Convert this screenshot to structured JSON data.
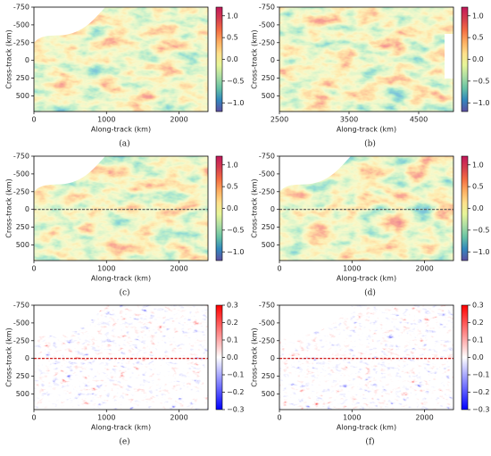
{
  "charts": [
    {
      "type": "heatmap",
      "caption": "(a)",
      "xlabel": "Along-track (km)",
      "ylabel": "Cross-track (km)",
      "xlim": [
        0,
        2400
      ],
      "xticks": [
        0,
        1000,
        2000
      ],
      "ylim": [
        -750,
        720
      ],
      "yticks": [
        -750,
        -500,
        -250,
        0,
        250,
        500
      ],
      "colorbar": {
        "lim": [
          -1.2,
          1.2
        ],
        "ticks": [
          {
            "value": 1,
            "label": "1.0"
          },
          {
            "value": 0.5,
            "label": "0.5"
          },
          {
            "value": 0,
            "label": "0.0"
          },
          {
            "value": -0.5,
            "label": "−0.5"
          },
          {
            "value": -1,
            "label": "−1.0"
          }
        ],
        "colors": [
          "#5e4fa2",
          "#3288bd",
          "#66c2a5",
          "#abdda4",
          "#e6f598",
          "#fee08b",
          "#fdae61",
          "#f46d43",
          "#d53e4f",
          "#c2185b"
        ]
      }
    },
    {
      "type": "heatmap",
      "caption": "(b)",
      "xlabel": "Along-track (km)",
      "ylabel": "Cross-track (km)",
      "xlim": [
        2500,
        5000
      ],
      "xticks": [
        2500,
        3500,
        4500
      ],
      "ylim": [
        -750,
        720
      ],
      "yticks": [
        -750,
        -500,
        -250,
        0,
        250,
        500
      ],
      "colorbar": {
        "lim": [
          -1.2,
          1.2
        ],
        "ticks": [
          {
            "value": 1,
            "label": "1.0"
          },
          {
            "value": 0.5,
            "label": "0.5"
          },
          {
            "value": 0,
            "label": "0.0"
          },
          {
            "value": -0.5,
            "label": "−0.5"
          },
          {
            "value": -1,
            "label": "−1.0"
          }
        ],
        "colors": [
          "#5e4fa2",
          "#3288bd",
          "#66c2a5",
          "#abdda4",
          "#e6f598",
          "#fee08b",
          "#fdae61",
          "#f46d43",
          "#d53e4f",
          "#c2185b"
        ]
      }
    },
    {
      "type": "heatmap",
      "caption": "(c)",
      "xlabel": "Along-track (km)",
      "ylabel": "Cross-track (km)",
      "xlim": [
        0,
        2400
      ],
      "xticks": [
        0,
        1000,
        2000
      ],
      "ylim": [
        -750,
        720
      ],
      "yticks": [
        -750,
        -500,
        -250,
        0,
        250,
        500
      ],
      "colorbar": {
        "lim": [
          -1.2,
          1.2
        ],
        "ticks": [
          {
            "value": 1,
            "label": "1.0"
          },
          {
            "value": 0.5,
            "label": "0.5"
          },
          {
            "value": 0,
            "label": "0.0"
          },
          {
            "value": -0.5,
            "label": "−0.5"
          },
          {
            "value": -1,
            "label": "−1.0"
          }
        ],
        "colors": [
          "#5e4fa2",
          "#3288bd",
          "#66c2a5",
          "#abdda4",
          "#e6f598",
          "#fee08b",
          "#fdae61",
          "#f46d43",
          "#d53e4f",
          "#c2185b"
        ]
      }
    },
    {
      "type": "heatmap",
      "caption": "(d)",
      "xlabel": "Along-track (km)",
      "ylabel": "Cross-track (km)",
      "xlim": [
        0,
        2400
      ],
      "xticks": [
        0,
        1000,
        2000
      ],
      "ylim": [
        -750,
        720
      ],
      "yticks": [
        -750,
        -500,
        -250,
        0,
        250,
        500
      ],
      "colorbar": {
        "lim": [
          -1.2,
          1.2
        ],
        "ticks": [
          {
            "value": 1,
            "label": "1.0"
          },
          {
            "value": 0.5,
            "label": "0.5"
          },
          {
            "value": 0,
            "label": "0.0"
          },
          {
            "value": -0.5,
            "label": "−0.5"
          },
          {
            "value": -1,
            "label": "−1.0"
          }
        ],
        "colors": [
          "#5e4fa2",
          "#3288bd",
          "#66c2a5",
          "#abdda4",
          "#e6f598",
          "#fee08b",
          "#fdae61",
          "#f46d43",
          "#d53e4f",
          "#c2185b"
        ]
      }
    },
    {
      "type": "heatmap",
      "caption": "(e)",
      "xlabel": "Along-track (km)",
      "ylabel": "Cross-track (km)",
      "xlim": [
        0,
        2400
      ],
      "xticks": [
        0,
        1000,
        2000
      ],
      "ylim": [
        -750,
        720
      ],
      "yticks": [
        -750,
        -500,
        -250,
        0,
        250,
        500
      ],
      "colorbar": {
        "lim": [
          -0.3,
          0.3
        ],
        "ticks": [
          0.3,
          0.2,
          0.1,
          {
            "value": 0,
            "label": "0.0"
          },
          {
            "value": -0.1,
            "label": "−0.1"
          },
          {
            "value": -0.2,
            "label": "−0.2"
          },
          {
            "value": -0.3,
            "label": "−0.3"
          }
        ],
        "colors": [
          "#0000ff",
          "#8080ff",
          "#ffffff",
          "#ff8080",
          "#ff0000"
        ]
      }
    },
    {
      "type": "heatmap",
      "caption": "(f)",
      "xlabel": "Along-track (km)",
      "ylabel": "Cross-track (km)",
      "xlim": [
        0,
        2400
      ],
      "xticks": [
        0,
        1000,
        2000
      ],
      "ylim": [
        -750,
        720
      ],
      "yticks": [
        -750,
        -500,
        -250,
        0,
        250,
        500
      ],
      "colorbar": {
        "lim": [
          -0.3,
          0.3
        ],
        "ticks": [
          0.3,
          0.2,
          0.1,
          {
            "value": 0,
            "label": "0.0"
          },
          {
            "value": -0.1,
            "label": "−0.1"
          },
          {
            "value": -0.2,
            "label": "−0.2"
          },
          {
            "value": -0.3,
            "label": "−0.3"
          }
        ],
        "colors": [
          "#0000ff",
          "#8080ff",
          "#ffffff",
          "#ff8080",
          "#ff0000"
        ]
      }
    }
  ]
}
